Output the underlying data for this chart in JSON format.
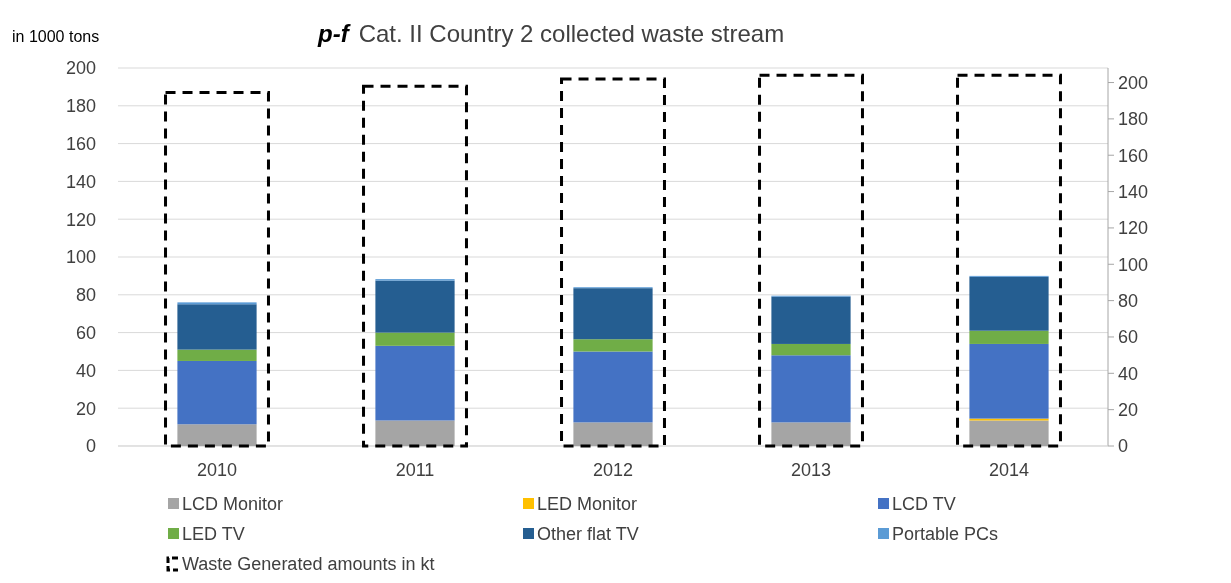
{
  "chart_data": {
    "type": "bar",
    "title": "p-f  Cat. II Country 2 collected waste stream",
    "ylabel": "in 1000 tons",
    "categories": [
      "2010",
      "2011",
      "2012",
      "2013",
      "2014"
    ],
    "stacked": true,
    "ylim": [
      0,
      200
    ],
    "yticks": [
      0,
      20,
      40,
      60,
      80,
      100,
      120,
      140,
      160,
      180,
      200
    ],
    "y2lim": [
      0,
      208
    ],
    "y2ticks": [
      0,
      20,
      40,
      60,
      80,
      100,
      120,
      140,
      160,
      180,
      200
    ],
    "grid": "y",
    "legend": "bottom",
    "series": [
      {
        "name": "LCD Monitor",
        "color": "#a5a5a5",
        "values": [
          11.5,
          13.5,
          12.5,
          12.5,
          13.5
        ]
      },
      {
        "name": "LED Monitor",
        "color": "#ffc000",
        "values": [
          0,
          0,
          0,
          0,
          1
        ]
      },
      {
        "name": "LCD TV",
        "color": "#4472c4",
        "values": [
          33.5,
          39.5,
          37.5,
          35.5,
          39.5
        ]
      },
      {
        "name": "LED TV",
        "color": "#70ad47",
        "values": [
          6,
          7,
          6.5,
          6,
          7
        ]
      },
      {
        "name": "Other flat TV",
        "color": "#255e91",
        "values": [
          24,
          27.5,
          27,
          25,
          28.5
        ]
      },
      {
        "name": "Portable PCs",
        "color": "#5b9bd5",
        "values": [
          1,
          0.8,
          0.5,
          0.5,
          0.5
        ]
      },
      {
        "name": "Waste Generated amounts in kt",
        "type": "bar",
        "axis": "y2",
        "color": "#000000",
        "line_style": "dashed",
        "values": [
          194.5,
          198,
          202,
          204,
          204
        ]
      }
    ]
  }
}
